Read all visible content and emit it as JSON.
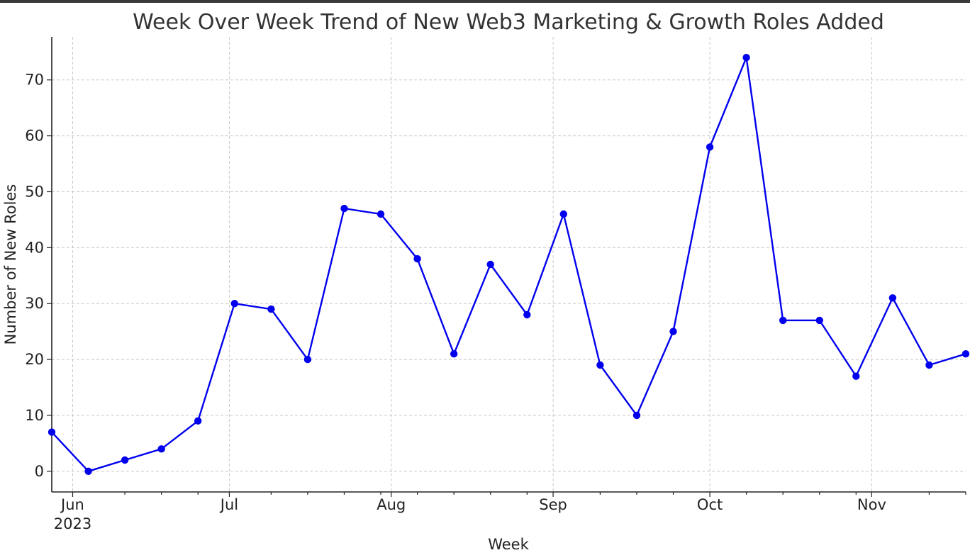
{
  "chart_data": {
    "type": "line",
    "title": "Week Over Week Trend of New Web3 Marketing & Growth Roles Added",
    "xlabel": "Week",
    "ylabel": "Number of New Roles",
    "x": [
      "2023-05-28",
      "2023-06-04",
      "2023-06-11",
      "2023-06-18",
      "2023-06-25",
      "2023-07-02",
      "2023-07-09",
      "2023-07-16",
      "2023-07-23",
      "2023-07-30",
      "2023-08-06",
      "2023-08-13",
      "2023-08-20",
      "2023-08-27",
      "2023-09-03",
      "2023-09-10",
      "2023-09-17",
      "2023-09-24",
      "2023-10-01",
      "2023-10-08",
      "2023-10-15",
      "2023-10-22",
      "2023-10-29",
      "2023-11-05",
      "2023-11-12",
      "2023-11-19"
    ],
    "series": [
      {
        "values": [
          7,
          0,
          2,
          4,
          9,
          30,
          29,
          20,
          47,
          46,
          38,
          21,
          37,
          28,
          46,
          19,
          10,
          25,
          58,
          74,
          27,
          27,
          17,
          31,
          19,
          21
        ],
        "color": "#0000ee"
      }
    ],
    "ylim": [
      -3.7,
      77.7
    ],
    "yticks": [
      0,
      10,
      20,
      30,
      40,
      50,
      60,
      70
    ],
    "xlim": [
      "2023-05-28",
      "2023-11-19"
    ],
    "xticks": [
      {
        "date": "2023-06-01",
        "label": "Jun",
        "sublabel": "2023"
      },
      {
        "date": "2023-07-01",
        "label": "Jul",
        "sublabel": ""
      },
      {
        "date": "2023-08-01",
        "label": "Aug",
        "sublabel": ""
      },
      {
        "date": "2023-09-01",
        "label": "Sep",
        "sublabel": ""
      },
      {
        "date": "2023-10-01",
        "label": "Oct",
        "sublabel": ""
      },
      {
        "date": "2023-11-01",
        "label": "Nov",
        "sublabel": ""
      }
    ],
    "minor_xticks": [
      "2023-06-11",
      "2023-06-18",
      "2023-06-25",
      "2023-07-09",
      "2023-07-16",
      "2023-07-23",
      "2023-07-30",
      "2023-08-06",
      "2023-08-13",
      "2023-08-20",
      "2023-08-27",
      "2023-09-10",
      "2023-09-17",
      "2023-09-24",
      "2023-10-08",
      "2023-10-15",
      "2023-10-22",
      "2023-10-29",
      "2023-11-12",
      "2023-11-19"
    ],
    "grid": true,
    "marker": "circle"
  }
}
